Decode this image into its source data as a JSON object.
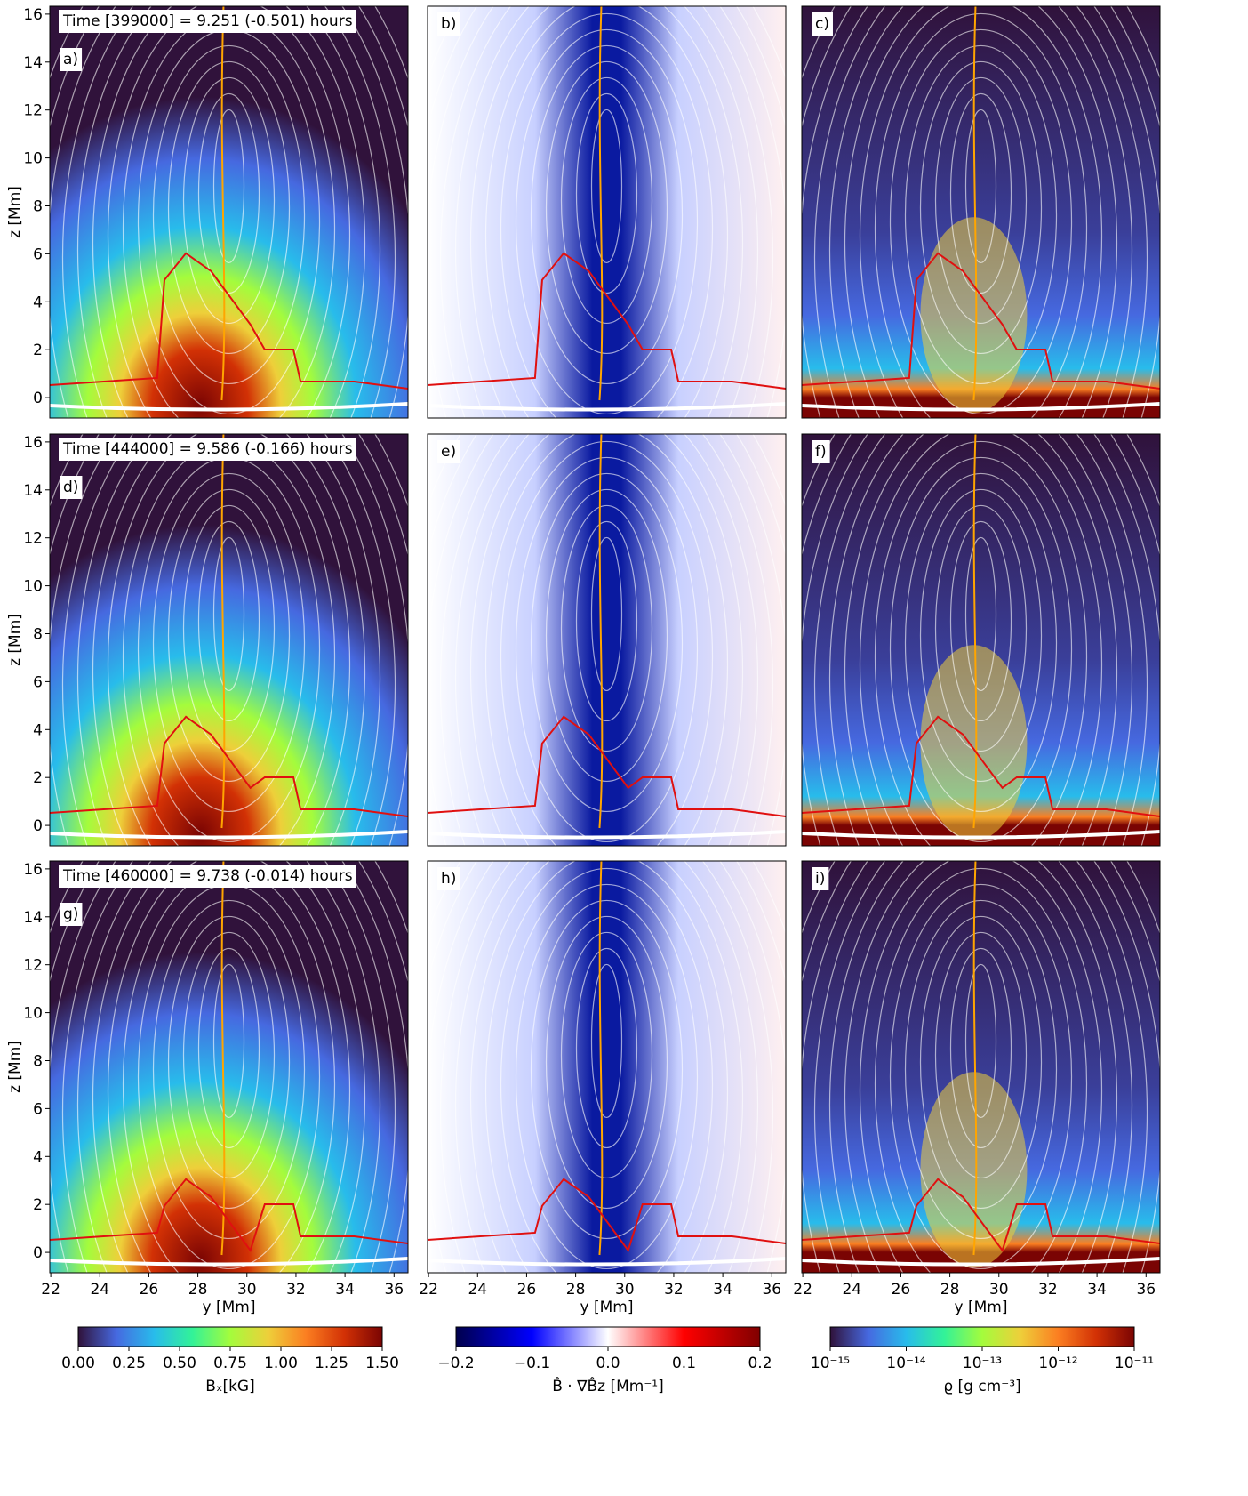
{
  "chart_data": [
    {
      "type": "heatmap",
      "panel_label": "a)",
      "annotation": "Time [399000] = 9.251 (-0.501) hours",
      "ylabel": "z [Mm]",
      "xlim": [
        21.96,
        36.57
      ],
      "ylim": [
        -0.85,
        16.33
      ],
      "yticks": [
        0,
        2,
        4,
        6,
        8,
        10,
        12,
        14,
        16
      ]
    },
    {
      "type": "heatmap",
      "panel_label": "b)",
      "xlim": [
        21.96,
        36.57
      ],
      "ylim": [
        -0.85,
        16.33
      ]
    },
    {
      "type": "heatmap",
      "panel_label": "c)",
      "xlim": [
        21.96,
        36.57
      ],
      "ylim": [
        -0.85,
        16.33
      ]
    },
    {
      "type": "heatmap",
      "panel_label": "d)",
      "annotation": "Time [444000] = 9.586 (-0.166) hours",
      "ylabel": "z [Mm]",
      "xlim": [
        21.96,
        36.57
      ],
      "ylim": [
        -0.85,
        16.33
      ],
      "yticks": [
        0,
        2,
        4,
        6,
        8,
        10,
        12,
        14,
        16
      ]
    },
    {
      "type": "heatmap",
      "panel_label": "e)",
      "xlim": [
        21.96,
        36.57
      ],
      "ylim": [
        -0.85,
        16.33
      ]
    },
    {
      "type": "heatmap",
      "panel_label": "f)",
      "xlim": [
        21.96,
        36.57
      ],
      "ylim": [
        -0.85,
        16.33
      ]
    },
    {
      "type": "heatmap",
      "panel_label": "g)",
      "annotation": "Time [460000] = 9.738 (-0.014) hours",
      "ylabel": "z [Mm]",
      "xlabel": "y [Mm]",
      "xlim": [
        21.96,
        36.57
      ],
      "ylim": [
        -0.85,
        16.33
      ],
      "xticks": [
        22,
        24,
        26,
        28,
        30,
        32,
        34,
        36
      ],
      "yticks": [
        0,
        2,
        4,
        6,
        8,
        10,
        12,
        14,
        16
      ],
      "colorbar": {
        "label": "Bₓ[kG]",
        "lim": [
          0,
          1.5
        ],
        "ticks": [
          {
            "value": 0,
            "label": "0.00"
          },
          {
            "value": 0.25,
            "label": "0.25"
          },
          {
            "value": 0.5,
            "label": "0.50"
          },
          {
            "value": 0.75,
            "label": "0.75"
          },
          {
            "value": 1,
            "label": "1.00"
          },
          {
            "value": 1.25,
            "label": "1.25"
          },
          {
            "value": 1.5,
            "label": "1.50"
          }
        ],
        "colors": [
          "#30123b",
          "#4669e0",
          "#28bceb",
          "#32f298",
          "#a4fc3c",
          "#eecf3a",
          "#fb7e21",
          "#d23105",
          "#7a0403"
        ]
      }
    },
    {
      "type": "heatmap",
      "panel_label": "h)",
      "xlabel": "y [Mm]",
      "xlim": [
        21.96,
        36.57
      ],
      "ylim": [
        -0.85,
        16.33
      ],
      "xticks": [
        22,
        24,
        26,
        28,
        30,
        32,
        34,
        36
      ],
      "colorbar": {
        "label": "B̂ · ∇B̂z [Mm⁻¹]",
        "lim": [
          -0.2,
          0.2
        ],
        "ticks": [
          {
            "value": -0.2,
            "label": "−0.2"
          },
          {
            "value": -0.1,
            "label": "−0.1"
          },
          {
            "value": 0,
            "label": "0.0"
          },
          0.1,
          0.2
        ],
        "colors": [
          "#00004c",
          "#0000ff",
          "#ffffff",
          "#ff0000",
          "#800000"
        ]
      }
    },
    {
      "type": "heatmap",
      "panel_label": "i)",
      "xlabel": "y [Mm]",
      "xlim": [
        21.96,
        36.57
      ],
      "ylim": [
        -0.85,
        16.33
      ],
      "xticks": [
        22,
        24,
        26,
        28,
        30,
        32,
        34,
        36
      ],
      "colorbar": {
        "label": "ϱ [g cm⁻³]",
        "log": true,
        "lim": [
          1e-15,
          1e-11
        ],
        "ticks": [
          {
            "value": 1e-15,
            "label": "10⁻¹⁵"
          },
          {
            "value": 1e-14,
            "label": "10⁻¹⁴"
          },
          {
            "value": 1e-13,
            "label": "10⁻¹³"
          },
          {
            "value": 1e-12,
            "label": "10⁻¹²"
          },
          {
            "value": 1e-11,
            "label": "10⁻¹¹"
          }
        ],
        "colors": [
          "#30123b",
          "#4669e0",
          "#28bceb",
          "#32f298",
          "#a4fc3c",
          "#eecf3a",
          "#fb7e21",
          "#d23105",
          "#7a0403"
        ]
      }
    }
  ]
}
